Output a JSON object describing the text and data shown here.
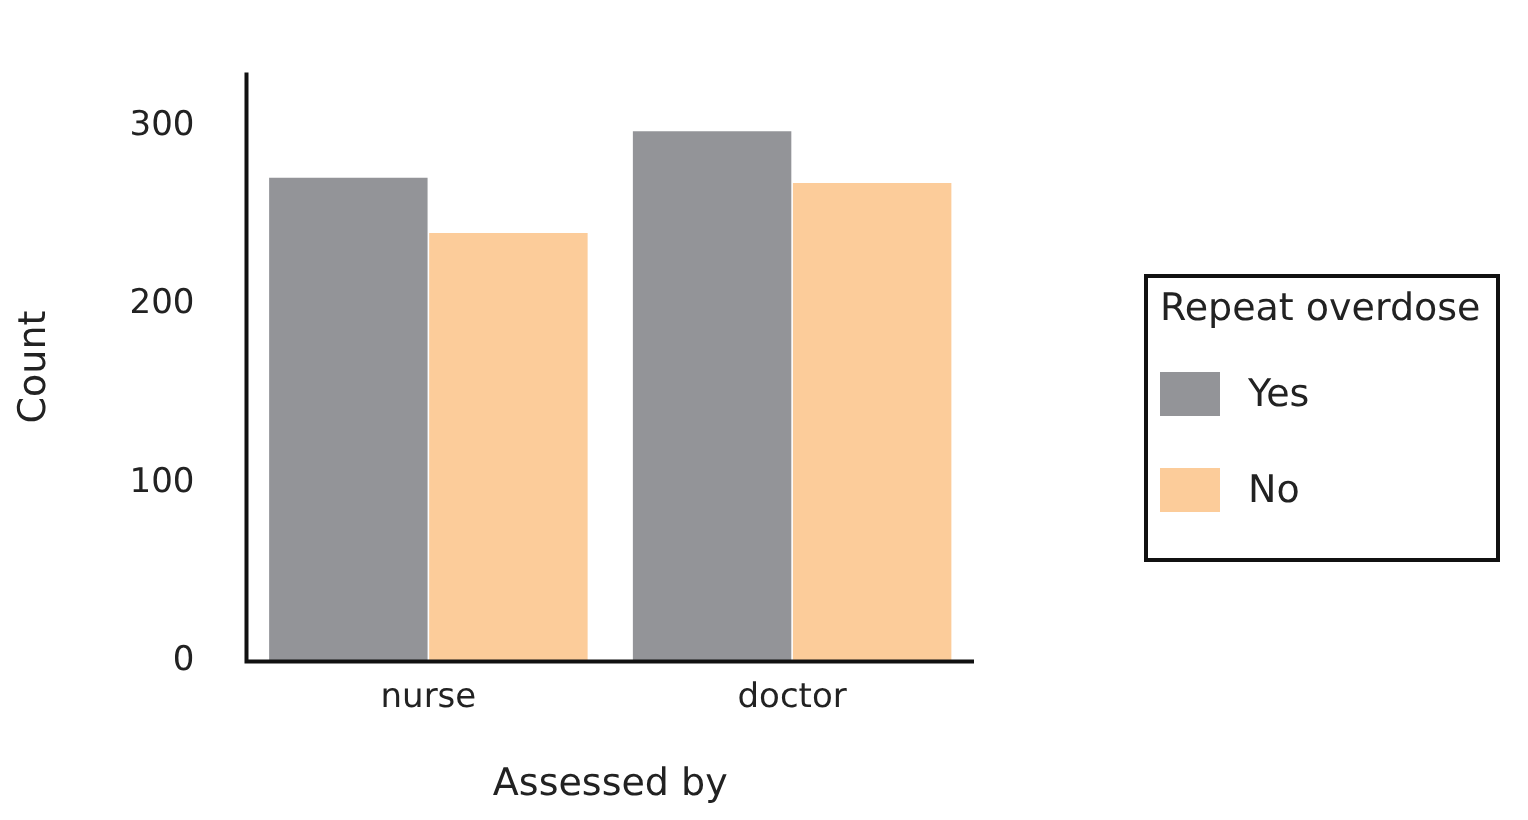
{
  "chart_data": {
    "type": "bar",
    "xlabel": "Assessed by",
    "ylabel": "Count",
    "legend_title": "Repeat overdose",
    "legend": "right",
    "grid": false,
    "categories": [
      "nurse",
      "doctor"
    ],
    "series": [
      {
        "name": "Yes",
        "color": "#939498",
        "values": [
          271,
          297
        ]
      },
      {
        "name": "No",
        "color": "#fccc9a",
        "values": [
          240,
          268
        ]
      }
    ],
    "ylim": [
      0,
      330
    ],
    "yticks": [
      0,
      100,
      200,
      300
    ]
  }
}
